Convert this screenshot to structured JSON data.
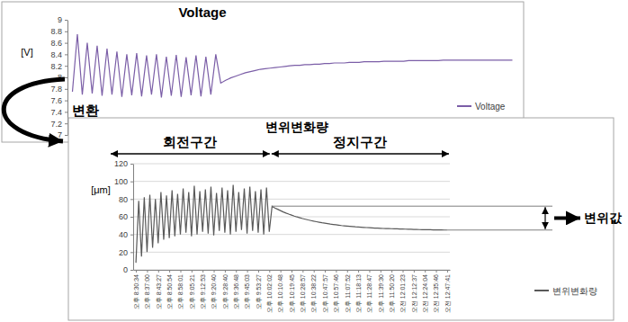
{
  "chart_data": [
    {
      "type": "line",
      "title": "Voltage",
      "ylabel": "[V]",
      "categories": [
        null,
        null,
        null,
        null,
        null,
        null,
        null,
        null,
        null,
        null,
        null,
        null,
        null,
        null,
        null,
        null,
        null,
        null,
        null,
        null,
        null,
        null,
        null,
        null,
        null,
        null,
        null,
        null,
        null,
        null,
        null,
        null,
        null,
        null,
        null,
        null,
        null,
        null,
        null,
        null,
        null,
        null,
        null,
        null,
        null,
        null,
        null,
        null,
        null,
        null,
        null,
        null,
        null,
        null,
        null,
        null,
        null,
        null,
        null,
        null,
        null,
        null,
        null,
        null,
        null,
        null,
        null,
        null,
        null,
        null,
        null,
        null,
        null,
        null,
        null,
        null,
        null,
        null,
        null,
        null,
        null,
        null,
        null,
        null,
        null,
        null,
        null,
        null,
        null,
        null
      ],
      "series": [
        {
          "name": "Voltage",
          "color": "#7b5ea7",
          "values": [
            7.75,
            8.75,
            7.7,
            8.6,
            7.72,
            8.55,
            7.68,
            8.5,
            7.7,
            8.45,
            7.66,
            8.4,
            7.69,
            8.42,
            7.67,
            8.38,
            7.7,
            8.4,
            7.65,
            8.36,
            7.68,
            8.39,
            7.66,
            8.35,
            7.69,
            8.38,
            7.67,
            8.36,
            7.7,
            8.4,
            7.9,
            7.95,
            7.99,
            8.02,
            8.05,
            8.08,
            8.1,
            8.12,
            8.14,
            8.15,
            8.16,
            8.17,
            8.18,
            8.19,
            8.2,
            8.21,
            8.21,
            8.22,
            8.22,
            8.23,
            8.23,
            8.24,
            8.24,
            8.25,
            8.25,
            8.25,
            8.26,
            8.26,
            8.26,
            8.27,
            8.27,
            8.27,
            8.27,
            8.28,
            8.28,
            8.28,
            8.28,
            8.28,
            8.29,
            8.29,
            8.29,
            8.29,
            8.29,
            8.29,
            8.29,
            8.3,
            8.3,
            8.3,
            8.3,
            8.3,
            8.3,
            8.3,
            8.3,
            8.3,
            8.3,
            8.3,
            8.3,
            8.3,
            8.3,
            8.3
          ]
        }
      ],
      "ylim": [
        7,
        9
      ],
      "yticks": [
        7,
        7.2,
        7.4,
        7.6,
        7.8,
        8,
        8.2,
        8.4,
        8.6,
        8.8,
        9
      ],
      "grid": false,
      "legend": "lower right",
      "tick_labels": "y",
      "annotations": [
        "변환"
      ]
    },
    {
      "type": "line",
      "title": "변위변화량",
      "ylabel": "[μm]",
      "categories": [
        "오후 8:30:34",
        null,
        null,
        null,
        "오후 8:37:00",
        null,
        null,
        null,
        "오후 8:43:27",
        null,
        null,
        null,
        "오후 8:50:54",
        null,
        null,
        null,
        "오후 8:58:01",
        null,
        null,
        null,
        "오후 9:05:21",
        null,
        null,
        null,
        "오후 9:12:53",
        null,
        null,
        null,
        "오후 9:20:40",
        null,
        null,
        null,
        "오후 9:28:40",
        null,
        null,
        null,
        "오후 9:36:48",
        null,
        null,
        null,
        "오후 9:45:03",
        null,
        null,
        null,
        "오후 9:53:27",
        null,
        null,
        null,
        "오후 10:02:02",
        null,
        null,
        null,
        "오후 10:10:48",
        null,
        null,
        null,
        "오후 10:19:45",
        null,
        null,
        null,
        "오후 10:28:57",
        null,
        null,
        null,
        "오후 10:38:22",
        null,
        null,
        null,
        "오후 10:47:57",
        null,
        null,
        null,
        "오후 10:57:46",
        null,
        null,
        null,
        "오후 11:07:52",
        null,
        null,
        null,
        "오후 11:18:13",
        null,
        null,
        null,
        "오후 11:28:47",
        null,
        null,
        null,
        "오후 11:39:30",
        null,
        null,
        null,
        "오후 11:50:20",
        null,
        null,
        null,
        "오전 12:01:23",
        null,
        null,
        null,
        "오전 12:12:37",
        null,
        null,
        null,
        "오전 12:24:04",
        null,
        null,
        null,
        "오전 12:35:46",
        null,
        null,
        null,
        "오전 12:47:41"
      ],
      "series": [
        {
          "name": "변위변화량",
          "color": "#595959",
          "values": [
            8,
            78,
            15,
            82,
            20,
            85,
            25,
            80,
            30,
            88,
            34,
            84,
            36,
            90,
            38,
            86,
            40,
            92,
            42,
            88,
            38,
            95,
            40,
            89,
            43,
            91,
            41,
            94,
            39,
            87,
            44,
            93,
            42,
            90,
            40,
            96,
            43,
            88,
            45,
            92,
            41,
            94,
            44,
            89,
            42,
            91,
            40,
            93,
            43,
            72,
            70,
            68.5,
            67,
            65.5,
            64.2,
            63,
            61.9,
            60.8,
            59.8,
            58.9,
            58,
            57.2,
            56.4,
            55.7,
            55,
            54.4,
            53.8,
            53.2,
            52.7,
            52.2,
            51.7,
            51.3,
            50.9,
            50.5,
            50.1,
            49.8,
            49.5,
            49.2,
            48.9,
            48.6,
            48.4,
            48.2,
            48,
            47.8,
            47.6,
            47.4,
            47.2,
            47.1,
            47,
            46.8,
            46.7,
            46.6,
            46.5,
            46.4,
            46.3,
            46.2,
            46.1,
            46,
            45.9,
            45.8,
            45.7,
            45.6,
            45.5,
            45.4,
            45.4,
            45.3,
            45.3,
            45.2,
            45.2,
            45.1,
            45.1,
            45,
            45
          ]
        }
      ],
      "ylim": [
        0,
        120
      ],
      "yticks": [
        0,
        20,
        40,
        60,
        80,
        100,
        120
      ],
      "grid": true,
      "legend": "right",
      "annotations": [
        "회전구간",
        "정지구간",
        "변위값"
      ]
    }
  ]
}
